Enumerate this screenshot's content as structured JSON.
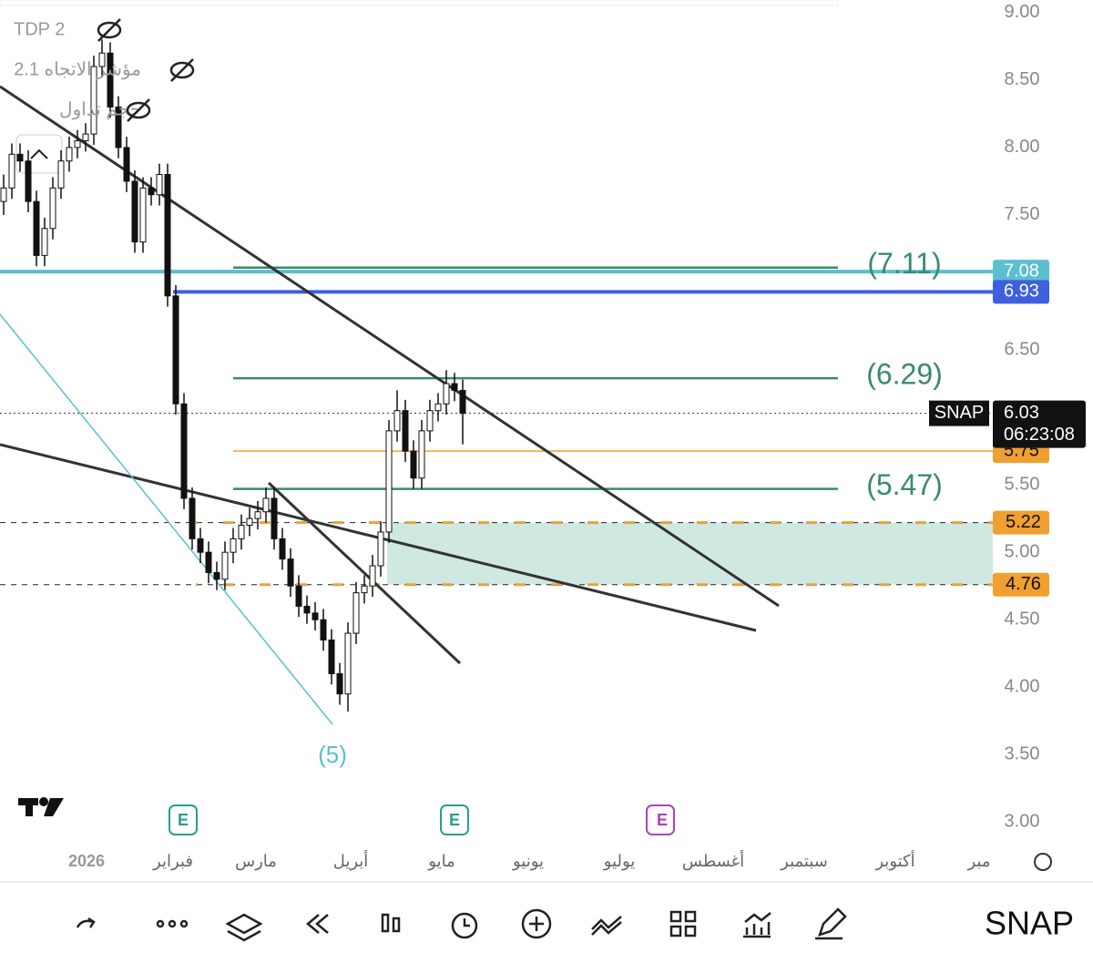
{
  "chart_data": {
    "type": "candlestick",
    "legend": [
      "TDP 2",
      "مؤشر الاتجاه 2.1",
      "حجم تداول"
    ],
    "categories": [
      null,
      null,
      null,
      null,
      null,
      null,
      null,
      null,
      null,
      null,
      null,
      null,
      null,
      null,
      null,
      null,
      null,
      null,
      null,
      null,
      null,
      null,
      null,
      null,
      null,
      null,
      null,
      null,
      null,
      null,
      null,
      null,
      null,
      null,
      null,
      null,
      null,
      null,
      null,
      null,
      null,
      null,
      null,
      null,
      null,
      null,
      null,
      null,
      null,
      null,
      null,
      null,
      null,
      null,
      null,
      null,
      null
    ],
    "open": [
      7.6,
      7.7,
      7.95,
      7.9,
      7.6,
      7.2,
      7.4,
      7.7,
      7.9,
      8.0,
      8.05,
      8.1,
      8.6,
      8.7,
      8.3,
      8.0,
      7.75,
      7.3,
      7.7,
      7.65,
      7.8,
      6.9,
      6.1,
      5.4,
      5.1,
      5.0,
      4.85,
      4.8,
      5.0,
      5.1,
      5.2,
      5.25,
      5.3,
      5.4,
      5.1,
      4.95,
      4.75,
      4.6,
      4.55,
      4.5,
      4.35,
      4.1,
      3.95,
      4.4,
      4.7,
      4.75,
      4.9,
      5.15,
      5.9,
      6.05,
      5.75,
      5.55,
      5.9,
      6.05,
      6.1,
      6.25,
      6.2
    ],
    "high": [
      7.8,
      8.03,
      8.03,
      7.98,
      7.68,
      7.48,
      7.78,
      7.98,
      8.08,
      8.13,
      8.18,
      8.68,
      8.8,
      8.78,
      8.38,
      8.08,
      7.83,
      7.78,
      7.78,
      7.88,
      7.88,
      6.98,
      6.18,
      5.48,
      5.18,
      5.08,
      4.93,
      5.08,
      5.18,
      5.28,
      5.33,
      5.38,
      5.48,
      5.48,
      5.18,
      5.03,
      4.83,
      4.68,
      4.63,
      4.58,
      4.43,
      4.18,
      4.48,
      4.78,
      4.83,
      4.98,
      5.23,
      5.98,
      6.2,
      6.13,
      5.83,
      5.98,
      6.13,
      6.18,
      6.35,
      6.33,
      6.28
    ],
    "low": [
      7.5,
      7.62,
      7.82,
      7.52,
      7.12,
      7.12,
      7.32,
      7.62,
      7.82,
      7.92,
      7.97,
      8.02,
      8.52,
      8.22,
      7.92,
      7.67,
      7.22,
      7.22,
      7.57,
      7.57,
      6.82,
      6.02,
      5.32,
      5.02,
      4.92,
      4.77,
      4.72,
      4.72,
      4.92,
      5.02,
      5.12,
      5.17,
      5.22,
      5.02,
      4.87,
      4.67,
      4.52,
      4.47,
      4.42,
      4.27,
      4.02,
      3.87,
      3.82,
      4.32,
      4.62,
      4.67,
      4.82,
      5.07,
      5.82,
      5.67,
      5.47,
      5.47,
      5.82,
      5.97,
      6.02,
      6.12,
      5.8
    ],
    "close": [
      7.7,
      7.95,
      7.9,
      7.6,
      7.2,
      7.4,
      7.7,
      7.9,
      8.0,
      8.05,
      8.1,
      8.6,
      8.7,
      8.3,
      8.0,
      7.75,
      7.3,
      7.7,
      7.65,
      7.8,
      6.9,
      6.1,
      5.4,
      5.1,
      5.0,
      4.85,
      4.8,
      5.0,
      5.1,
      5.2,
      5.25,
      5.3,
      5.4,
      5.1,
      4.95,
      4.75,
      4.6,
      4.55,
      4.5,
      4.35,
      4.1,
      3.95,
      4.4,
      4.7,
      4.75,
      4.9,
      5.15,
      5.9,
      6.05,
      5.75,
      5.55,
      5.9,
      6.05,
      6.1,
      6.25,
      6.2,
      6.03
    ],
    "ylim": [
      2.8,
      9.1
    ],
    "yticks": [
      {
        "value": 3,
        "label": "3.00"
      },
      {
        "value": 3.5,
        "label": "3.50"
      },
      {
        "value": 4,
        "label": "4.00"
      },
      {
        "value": 4.5,
        "label": "4.50"
      },
      {
        "value": 5,
        "label": "5.00"
      },
      {
        "value": 5.5,
        "label": "5.50"
      },
      {
        "value": 6.5,
        "label": "6.50"
      },
      {
        "value": 7.5,
        "label": "7.50"
      },
      {
        "value": 8,
        "label": "8.00"
      },
      {
        "value": 8.5,
        "label": "8.50"
      },
      {
        "value": 9,
        "label": "9.00"
      }
    ],
    "time_labels": [
      "2026",
      "فبراير",
      "مارس",
      "أبريل",
      "مايو",
      "يونيو",
      "يوليو",
      "أغسطس",
      "سبتمبر",
      "أكتوبر",
      "مبر"
    ],
    "levels": [
      {
        "value": 7.08,
        "label": "7.08",
        "color": "#5bbfd0"
      },
      {
        "value": 6.93,
        "label": "6.93",
        "color": "#3d5fe0"
      },
      {
        "value": 5.75,
        "label": "5.75",
        "color": "#f0a030"
      }
    ],
    "targets": [
      {
        "value": 7.11,
        "label": "(7.11)"
      },
      {
        "value": 6.29,
        "label": "(6.29)"
      },
      {
        "value": 5.47,
        "label": "(5.47)"
      }
    ],
    "zone": [
      {
        "value": 5.22,
        "label": "5.22"
      },
      {
        "value": 4.76,
        "label": "4.76"
      }
    ],
    "wave_label": "(5)",
    "price": {
      "symbol": "SNAP",
      "value": 6.03,
      "label": "6.03",
      "countdown": "06:23:08"
    }
  },
  "toolbar": {
    "symbol": "SNAP"
  }
}
